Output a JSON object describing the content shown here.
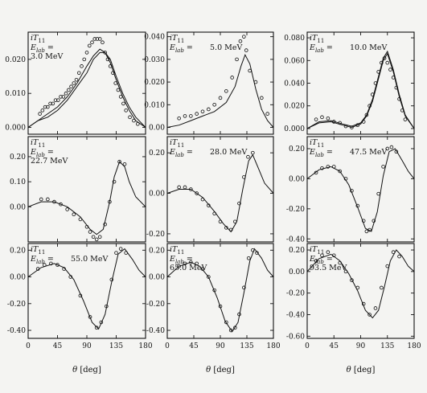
{
  "figure": {
    "background": "#f4f4f2",
    "ink": "#111111",
    "x_ticks": [
      0,
      45,
      90,
      135,
      180
    ],
    "x_range": [
      0,
      180
    ],
    "x_axis_label_theta": "θ",
    "x_axis_label_unit": "[deg]"
  },
  "chart_data": [
    {
      "type": "scatter",
      "observable": "iT",
      "observable_subscript": "11",
      "energy_label": "E",
      "energy_subscript": "lab",
      "energy_value": "3.0 MeV",
      "ylim": [
        -0.002,
        0.028
      ],
      "yticks": [
        0.0,
        0.01,
        0.02
      ],
      "ytick_labels": [
        "0.000",
        "0.010",
        "0.020"
      ],
      "series": [
        {
          "kind": "data",
          "x": [
            18,
            22,
            26,
            30,
            34,
            38,
            42,
            46,
            50,
            54,
            58,
            62,
            66,
            70,
            74,
            78,
            82,
            86,
            90,
            94,
            98,
            102,
            106,
            110,
            114,
            118,
            122,
            126,
            130,
            134,
            138,
            142,
            146,
            150,
            156,
            162,
            168
          ],
          "y": [
            0.004,
            0.005,
            0.006,
            0.006,
            0.007,
            0.007,
            0.008,
            0.008,
            0.009,
            0.009,
            0.01,
            0.011,
            0.012,
            0.013,
            0.014,
            0.016,
            0.018,
            0.02,
            0.022,
            0.024,
            0.025,
            0.026,
            0.026,
            0.026,
            0.025,
            0.022,
            0.02,
            0.018,
            0.016,
            0.013,
            0.011,
            0.009,
            0.007,
            0.005,
            0.003,
            0.002,
            0.001
          ]
        },
        {
          "kind": "curve",
          "x": [
            0,
            15,
            30,
            45,
            60,
            75,
            90,
            100,
            110,
            118,
            126,
            135,
            145,
            155,
            165,
            180
          ],
          "y": [
            0,
            0.002,
            0.004,
            0.006,
            0.009,
            0.013,
            0.018,
            0.021,
            0.023,
            0.022,
            0.019,
            0.014,
            0.009,
            0.005,
            0.002,
            0
          ]
        },
        {
          "kind": "curve",
          "x": [
            0,
            15,
            30,
            45,
            60,
            75,
            90,
            100,
            110,
            118,
            126,
            135,
            145,
            155,
            165,
            180
          ],
          "y": [
            0,
            0.002,
            0.003,
            0.005,
            0.008,
            0.012,
            0.016,
            0.02,
            0.022,
            0.022,
            0.02,
            0.015,
            0.01,
            0.006,
            0.003,
            0
          ]
        }
      ]
    },
    {
      "type": "scatter",
      "observable": "iT",
      "observable_subscript": "11",
      "energy_label": "E",
      "energy_subscript": "lab",
      "energy_value": "5.0 MeV",
      "ylim": [
        -0.003,
        0.042
      ],
      "yticks": [
        0.0,
        0.01,
        0.02,
        0.03,
        0.04
      ],
      "ytick_labels": [
        "0.00",
        "0.010",
        "0.020",
        "0.030",
        "0.040"
      ],
      "series": [
        {
          "kind": "data",
          "x": [
            20,
            30,
            40,
            50,
            60,
            70,
            80,
            90,
            100,
            110,
            118,
            124,
            130,
            134,
            140,
            150,
            160,
            170
          ],
          "y": [
            0.004,
            0.005,
            0.005,
            0.006,
            0.007,
            0.008,
            0.01,
            0.013,
            0.016,
            0.022,
            0.03,
            0.038,
            0.04,
            0.034,
            0.025,
            0.02,
            0.013,
            0.006
          ]
        },
        {
          "kind": "curve",
          "x": [
            0,
            20,
            40,
            60,
            80,
            100,
            115,
            125,
            132,
            140,
            150,
            160,
            170,
            180
          ],
          "y": [
            0,
            0.001,
            0.003,
            0.005,
            0.007,
            0.011,
            0.018,
            0.027,
            0.032,
            0.028,
            0.017,
            0.008,
            0.003,
            0
          ]
        }
      ]
    },
    {
      "type": "scatter",
      "observable": "iT",
      "observable_subscript": "11",
      "energy_label": "E",
      "energy_subscript": "lab",
      "energy_value": "10.0 MeV",
      "ylim": [
        -0.005,
        0.085
      ],
      "yticks": [
        0.0,
        0.02,
        0.04,
        0.06,
        0.08
      ],
      "ytick_labels": [
        "0.000",
        "0.020",
        "0.040",
        "0.060",
        "0.080"
      ],
      "series": [
        {
          "kind": "data",
          "x": [
            15,
            25,
            35,
            45,
            55,
            65,
            75,
            85,
            95,
            100,
            105,
            110,
            115,
            120,
            125,
            130,
            135,
            140,
            145,
            150,
            155,
            160,
            165
          ],
          "y": [
            0.008,
            0.01,
            0.009,
            0.006,
            0.005,
            0.002,
            0.001,
            0.003,
            0.006,
            0.012,
            0.02,
            0.03,
            0.04,
            0.05,
            0.058,
            0.062,
            0.058,
            0.052,
            0.045,
            0.036,
            0.026,
            0.016,
            0.008
          ]
        },
        {
          "kind": "curve",
          "x": [
            0,
            20,
            40,
            60,
            75,
            90,
            100,
            110,
            120,
            128,
            135,
            145,
            155,
            165,
            180
          ],
          "y": [
            0,
            0.006,
            0.007,
            0.004,
            0.002,
            0.005,
            0.012,
            0.026,
            0.046,
            0.062,
            0.068,
            0.052,
            0.03,
            0.012,
            0
          ]
        },
        {
          "kind": "curve",
          "x": [
            0,
            20,
            40,
            60,
            75,
            90,
            100,
            110,
            120,
            128,
            135,
            145,
            155,
            165,
            180
          ],
          "y": [
            0,
            0.005,
            0.006,
            0.003,
            0.001,
            0.004,
            0.011,
            0.024,
            0.044,
            0.06,
            0.066,
            0.05,
            0.028,
            0.011,
            0
          ]
        }
      ]
    },
    {
      "type": "scatter",
      "observable": "iT",
      "observable_subscript": "11",
      "energy_label": "E",
      "energy_subscript": "lab",
      "energy_value": "22.7 MeV",
      "ylim": [
        -0.14,
        0.28
      ],
      "yticks": [
        0.0,
        0.1,
        0.2
      ],
      "ytick_labels": [
        "0.00",
        "0.10",
        "0.20"
      ],
      "series": [
        {
          "kind": "data",
          "x": [
            20,
            30,
            40,
            50,
            60,
            70,
            80,
            90,
            95,
            100,
            105,
            110,
            118,
            125,
            132,
            140,
            148
          ],
          "y": [
            0.03,
            0.03,
            0.02,
            0.01,
            -0.01,
            -0.03,
            -0.05,
            -0.08,
            -0.1,
            -0.12,
            -0.13,
            -0.12,
            -0.07,
            0.02,
            0.1,
            0.18,
            0.17
          ]
        },
        {
          "kind": "curve",
          "x": [
            0,
            20,
            40,
            60,
            80,
            95,
            105,
            115,
            125,
            132,
            140,
            148,
            155,
            165,
            180
          ],
          "y": [
            0,
            0.02,
            0.02,
            0.0,
            -0.04,
            -0.09,
            -0.11,
            -0.09,
            0.02,
            0.12,
            0.18,
            0.16,
            0.1,
            0.04,
            0
          ]
        }
      ]
    },
    {
      "type": "scatter",
      "observable": "iT",
      "observable_subscript": "11",
      "energy_label": "E",
      "energy_subscript": "lab",
      "energy_value": "28.0 MeV",
      "ylim": [
        -0.24,
        0.28
      ],
      "yticks": [
        -0.2,
        0.0,
        0.2
      ],
      "ytick_labels": [
        "-0.20",
        "0.00",
        "0.20"
      ],
      "series": [
        {
          "kind": "data",
          "x": [
            20,
            30,
            40,
            50,
            60,
            70,
            80,
            90,
            100,
            108,
            115,
            122,
            130,
            137,
            145
          ],
          "y": [
            0.03,
            0.03,
            0.02,
            0.0,
            -0.03,
            -0.06,
            -0.1,
            -0.14,
            -0.17,
            -0.18,
            -0.14,
            -0.05,
            0.08,
            0.18,
            0.2
          ]
        },
        {
          "kind": "curve",
          "x": [
            0,
            20,
            40,
            60,
            80,
            95,
            108,
            118,
            128,
            138,
            145,
            155,
            165,
            180
          ],
          "y": [
            0,
            0.02,
            0.02,
            -0.02,
            -0.09,
            -0.15,
            -0.19,
            -0.14,
            0.02,
            0.16,
            0.19,
            0.12,
            0.05,
            0
          ]
        }
      ]
    },
    {
      "type": "scatter",
      "observable": "iT",
      "observable_subscript": "11",
      "energy_label": "E",
      "energy_subscript": "lab",
      "energy_value": "47.5 MeV",
      "ylim": [
        -0.42,
        0.28
      ],
      "yticks": [
        -0.4,
        -0.2,
        0.0,
        0.2
      ],
      "ytick_labels": [
        "-0.40",
        "-0.20",
        "0.00",
        "0.20"
      ],
      "series": [
        {
          "kind": "data",
          "x": [
            15,
            25,
            35,
            45,
            55,
            65,
            75,
            85,
            95,
            100,
            105,
            112,
            120,
            128,
            135,
            142,
            150
          ],
          "y": [
            0.04,
            0.07,
            0.08,
            0.08,
            0.05,
            0.0,
            -0.08,
            -0.18,
            -0.28,
            -0.35,
            -0.34,
            -0.28,
            -0.1,
            0.08,
            0.2,
            0.21,
            0.18
          ]
        },
        {
          "kind": "curve",
          "x": [
            0,
            20,
            40,
            55,
            70,
            85,
            98,
            108,
            118,
            128,
            138,
            148,
            160,
            170,
            180
          ],
          "y": [
            0,
            0.06,
            0.08,
            0.05,
            -0.04,
            -0.19,
            -0.33,
            -0.35,
            -0.22,
            0.02,
            0.18,
            0.2,
            0.12,
            0.05,
            0
          ]
        }
      ]
    },
    {
      "type": "scatter",
      "observable": "iT",
      "observable_subscript": "11",
      "energy_label": "E",
      "energy_subscript": "lab",
      "energy_value": "55.0 MeV",
      "ylim": [
        -0.46,
        0.25
      ],
      "yticks": [
        -0.4,
        -0.2,
        0.0,
        0.2
      ],
      "ytick_labels": [
        "-0.40",
        "-0.20",
        "0.00",
        "0.20"
      ],
      "series": [
        {
          "kind": "data",
          "x": [
            15,
            25,
            35,
            45,
            55,
            65,
            80,
            95,
            105,
            112,
            120,
            128,
            135,
            142,
            150
          ],
          "y": [
            0.06,
            0.09,
            0.1,
            0.09,
            0.06,
            0.0,
            -0.14,
            -0.3,
            -0.38,
            -0.34,
            -0.22,
            -0.02,
            0.18,
            0.21,
            0.18
          ]
        },
        {
          "kind": "curve",
          "x": [
            0,
            20,
            40,
            55,
            70,
            85,
            98,
            108,
            118,
            128,
            138,
            148,
            160,
            170,
            180
          ],
          "y": [
            0,
            0.07,
            0.1,
            0.07,
            -0.02,
            -0.18,
            -0.34,
            -0.39,
            -0.28,
            -0.04,
            0.17,
            0.21,
            0.13,
            0.05,
            0
          ]
        }
      ]
    },
    {
      "type": "scatter",
      "observable": "iT",
      "observable_subscript": "11",
      "energy_label": "E",
      "energy_subscript": "lab",
      "energy_value": "65.0 MeV",
      "ylim": [
        -0.46,
        0.25
      ],
      "yticks": [
        -0.4,
        -0.2,
        0.0,
        0.2
      ],
      "ytick_labels": [
        "-0.40",
        "-0.20",
        "0.00",
        "0.20"
      ],
      "series": [
        {
          "kind": "data",
          "x": [
            20,
            30,
            40,
            50,
            60,
            70,
            80,
            90,
            100,
            108,
            115,
            122,
            130,
            138,
            145,
            152
          ],
          "y": [
            0.08,
            0.1,
            0.11,
            0.1,
            0.06,
            0.0,
            -0.1,
            -0.22,
            -0.34,
            -0.4,
            -0.38,
            -0.28,
            -0.08,
            0.14,
            0.2,
            0.18
          ]
        },
        {
          "kind": "curve",
          "x": [
            0,
            20,
            40,
            55,
            70,
            85,
            98,
            110,
            120,
            130,
            140,
            148,
            160,
            170,
            180
          ],
          "y": [
            0,
            0.08,
            0.11,
            0.08,
            0.0,
            -0.16,
            -0.33,
            -0.41,
            -0.34,
            -0.12,
            0.12,
            0.21,
            0.14,
            0.05,
            0
          ]
        }
      ]
    },
    {
      "type": "scatter",
      "observable": "iT",
      "observable_subscript": "11",
      "energy_label": "E",
      "energy_subscript": "lab",
      "energy_value": "93.5 MeV",
      "ylim": [
        -0.62,
        0.26
      ],
      "yticks": [
        -0.6,
        -0.4,
        -0.2,
        0.0,
        0.2
      ],
      "ytick_labels": [
        "-0.60",
        "-0.40",
        "-0.20",
        "0.00",
        "0.20"
      ],
      "series": [
        {
          "kind": "data",
          "x": [
            15,
            25,
            35,
            45,
            55,
            65,
            75,
            85,
            95,
            105,
            115,
            125,
            135,
            145,
            155
          ],
          "y": [
            0.1,
            0.15,
            0.18,
            0.15,
            0.08,
            0.0,
            -0.08,
            -0.15,
            -0.3,
            -0.4,
            -0.34,
            -0.15,
            0.05,
            0.18,
            0.14
          ]
        },
        {
          "kind": "curve",
          "x": [
            0,
            20,
            40,
            55,
            70,
            85,
            98,
            110,
            120,
            130,
            140,
            150,
            160,
            170,
            180
          ],
          "y": [
            0,
            0.12,
            0.16,
            0.1,
            -0.02,
            -0.18,
            -0.36,
            -0.43,
            -0.36,
            -0.14,
            0.1,
            0.2,
            0.14,
            0.05,
            0
          ]
        }
      ]
    }
  ]
}
